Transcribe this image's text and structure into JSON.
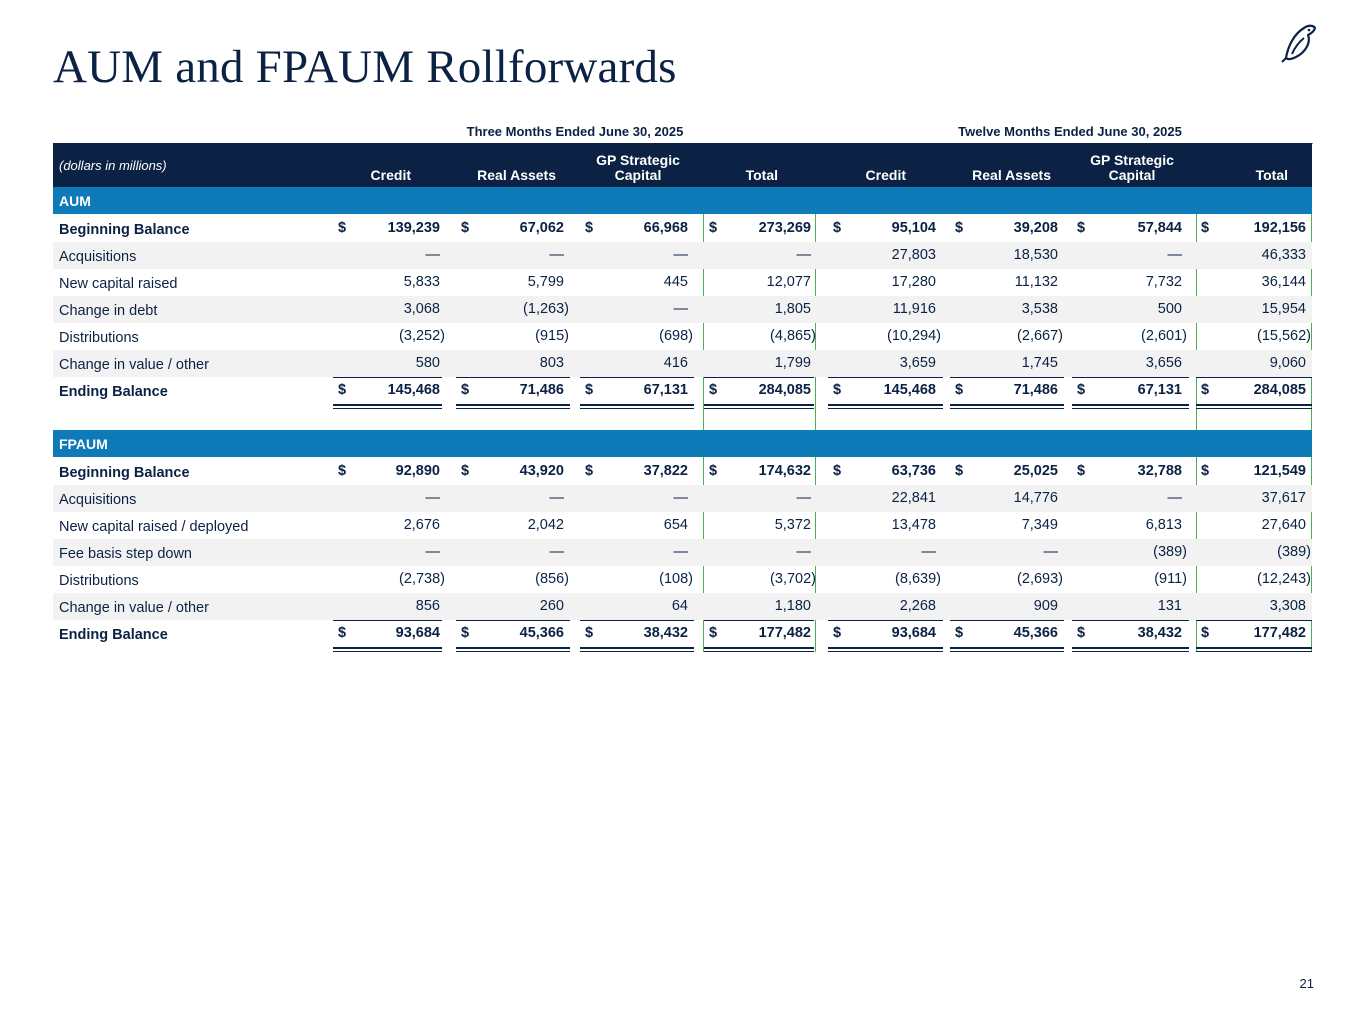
{
  "title": "AUM and FPAUM Rollforwards",
  "page_number": "21",
  "period_three": "Three Months Ended June 30, 2025",
  "period_twelve": "Twelve Months Ended June 30, 2025",
  "unit_label": "(dollars in millions)",
  "columns": [
    "Credit",
    "Real Assets",
    "GP Strategic Capital",
    "Total",
    "Credit",
    "Real Assets",
    "GP Strategic Capital",
    "Total"
  ],
  "currency_symbol": "$",
  "aum": {
    "section_label": "AUM",
    "rows": [
      {
        "label": "Beginning Balance",
        "values": [
          "139,239",
          "67,062",
          "66,968",
          "273,269",
          "95,104",
          "39,208",
          "57,844",
          "192,156"
        ]
      },
      {
        "label": "Acquisitions",
        "values": [
          "—",
          "—",
          "—",
          "—",
          "27,803",
          "18,530",
          "—",
          "46,333"
        ]
      },
      {
        "label": "New capital raised",
        "values": [
          "5,833",
          "5,799",
          "445",
          "12,077",
          "17,280",
          "11,132",
          "7,732",
          "36,144"
        ]
      },
      {
        "label": "Change in debt",
        "values": [
          "3,068",
          "(1,263)",
          "—",
          "1,805",
          "11,916",
          "3,538",
          "500",
          "15,954"
        ]
      },
      {
        "label": "Distributions",
        "values": [
          "(3,252)",
          "(915)",
          "(698)",
          "(4,865)",
          "(10,294)",
          "(2,667)",
          "(2,601)",
          "(15,562)"
        ]
      },
      {
        "label": "Change in value / other",
        "values": [
          "580",
          "803",
          "416",
          "1,799",
          "3,659",
          "1,745",
          "3,656",
          "9,060"
        ]
      },
      {
        "label": "Ending Balance",
        "values": [
          "145,468",
          "71,486",
          "67,131",
          "284,085",
          "145,468",
          "71,486",
          "67,131",
          "284,085"
        ]
      }
    ]
  },
  "fpaum": {
    "section_label": "FPAUM",
    "rows": [
      {
        "label": "Beginning Balance",
        "values": [
          "92,890",
          "43,920",
          "37,822",
          "174,632",
          "63,736",
          "25,025",
          "32,788",
          "121,549"
        ]
      },
      {
        "label": "Acquisitions",
        "values": [
          "—",
          "—",
          "—",
          "—",
          "22,841",
          "14,776",
          "—",
          "37,617"
        ]
      },
      {
        "label": "New capital raised / deployed",
        "values": [
          "2,676",
          "2,042",
          "654",
          "5,372",
          "13,478",
          "7,349",
          "6,813",
          "27,640"
        ]
      },
      {
        "label": "Fee basis step down",
        "values": [
          "—",
          "—",
          "—",
          "—",
          "—",
          "—",
          "(389)",
          "(389)"
        ]
      },
      {
        "label": "Distributions",
        "values": [
          "(2,738)",
          "(856)",
          "(108)",
          "(3,702)",
          "(8,639)",
          "(2,693)",
          "(911)",
          "(12,243)"
        ]
      },
      {
        "label": "Change in value / other",
        "values": [
          "856",
          "260",
          "64",
          "1,180",
          "2,268",
          "909",
          "131",
          "3,308"
        ]
      },
      {
        "label": "Ending Balance",
        "values": [
          "93,684",
          "45,366",
          "38,432",
          "177,482",
          "93,684",
          "45,366",
          "38,432",
          "177,482"
        ]
      }
    ]
  }
}
